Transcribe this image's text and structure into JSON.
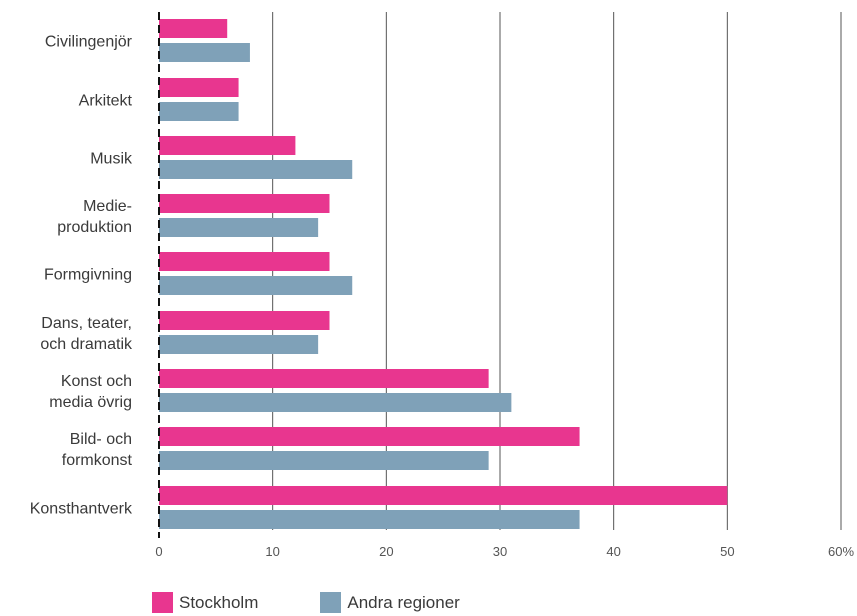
{
  "chart_data": {
    "type": "bar",
    "orientation": "horizontal",
    "categories": [
      [
        "Civilingenjör"
      ],
      [
        "Arkitekt"
      ],
      [
        "Musik"
      ],
      [
        "Medie-",
        "produktion"
      ],
      [
        "Formgivning"
      ],
      [
        "Dans, teater,",
        "och dramatik"
      ],
      [
        "Konst och",
        "media övrig"
      ],
      [
        "Bild- och",
        "formkonst"
      ],
      [
        "Konsthantverk"
      ]
    ],
    "series": [
      {
        "name": "Stockholm",
        "color": "#e8368f",
        "values": [
          6,
          7,
          12,
          15,
          15,
          15,
          29,
          37,
          50
        ]
      },
      {
        "name": "Andra regioner",
        "color": "#7fa1b8",
        "values": [
          8,
          7,
          17,
          14,
          17,
          14,
          31,
          29,
          37
        ]
      }
    ],
    "xlim": [
      0,
      60
    ],
    "xticks": [
      "0",
      "10",
      "20",
      "30",
      "40",
      "50",
      "60%"
    ],
    "grid": true,
    "legend_position": "bottom-left"
  }
}
